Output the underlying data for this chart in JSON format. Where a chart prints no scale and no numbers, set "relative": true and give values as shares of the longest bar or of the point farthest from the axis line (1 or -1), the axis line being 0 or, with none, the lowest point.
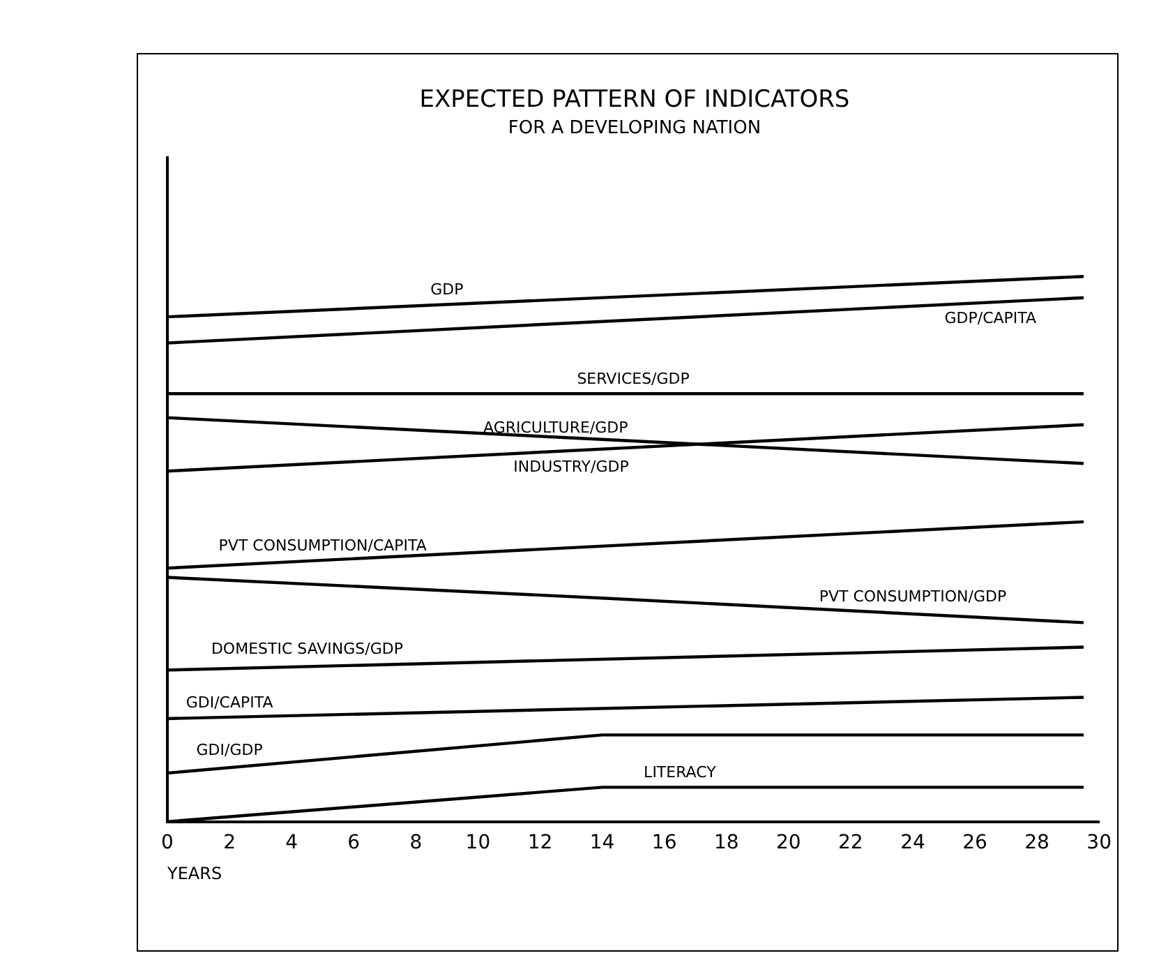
{
  "chart_data": {
    "type": "line",
    "title": "EXPECTED PATTERN OF INDICATORS",
    "subtitle": "FOR A DEVELOPING NATION",
    "xlabel": "YEARS",
    "relative": true,
    "legend": false,
    "marker": "none",
    "line_style": "solid",
    "xlim": [
      0,
      30
    ],
    "xticks": [
      0,
      2,
      4,
      6,
      8,
      10,
      12,
      14,
      16,
      18,
      20,
      22,
      24,
      26,
      28,
      30
    ],
    "series": [
      {
        "name": "GDP",
        "color": "#000000",
        "x": [
          0,
          29.5
        ],
        "values": [
          0.926,
          1.0
        ]
      },
      {
        "name": "GDP/CAPITA",
        "color": "#000000",
        "x": [
          0,
          29.5
        ],
        "values": [
          0.878,
          0.961
        ]
      },
      {
        "name": "SERVICES/GDP",
        "color": "#000000",
        "x": [
          0,
          29.5
        ],
        "values": [
          0.785,
          0.785
        ]
      },
      {
        "name": "AGRICULTURE/GDP",
        "color": "#000000",
        "x": [
          0,
          29.5
        ],
        "values": [
          0.741,
          0.657
        ]
      },
      {
        "name": "INDUSTRY/GDP",
        "color": "#000000",
        "x": [
          0,
          29.5
        ],
        "values": [
          0.643,
          0.728
        ]
      },
      {
        "name": "PVT CONSUMPTION/CAPITA",
        "color": "#000000",
        "x": [
          0,
          29.5
        ],
        "values": [
          0.465,
          0.55
        ]
      },
      {
        "name": "PVT CONSUMPTION/GDP",
        "color": "#000000",
        "x": [
          0,
          14,
          29.5
        ],
        "values": [
          0.448,
          0.41,
          0.365
        ]
      },
      {
        "name": "DOMESTIC SAVINGS/GDP",
        "color": "#000000",
        "x": [
          0,
          29.5
        ],
        "values": [
          0.278,
          0.32
        ]
      },
      {
        "name": "GDI/CAPITA",
        "color": "#000000",
        "x": [
          0,
          29.5
        ],
        "values": [
          0.189,
          0.228
        ]
      },
      {
        "name": "GDI/GDP",
        "color": "#000000",
        "x": [
          0,
          14,
          29.5
        ],
        "values": [
          0.089,
          0.159,
          0.159
        ]
      },
      {
        "name": "LITERACY",
        "color": "#000000",
        "x": [
          0,
          14,
          29.5
        ],
        "values": [
          0,
          0.063,
          0.063
        ]
      }
    ]
  }
}
